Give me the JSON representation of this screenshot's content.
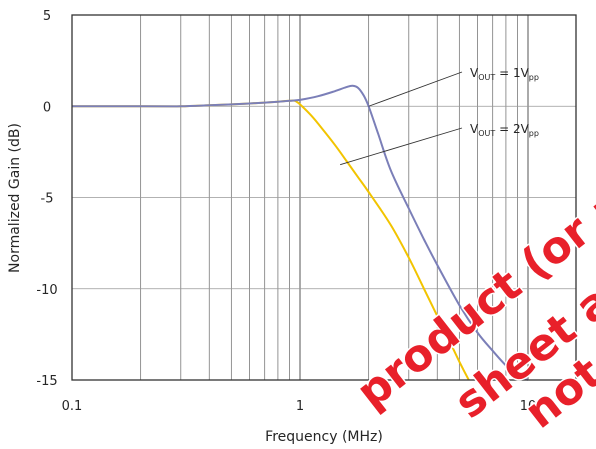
{
  "chart_data": {
    "type": "line",
    "xlabel": "Frequency (MHz)",
    "ylabel": "Normalized Gain (dB)",
    "xscale": "log",
    "xlim": [
      0.1,
      20
    ],
    "ylim": [
      -15,
      5
    ],
    "x_ticks": [
      "0.1",
      "1",
      "10"
    ],
    "y_ticks": [
      "5",
      "0",
      "-5",
      "-10",
      "-15"
    ],
    "grid": true,
    "series": [
      {
        "name": "VOUT = 1Vpp",
        "label_parts": {
          "v": "V",
          "sub1": "OUT",
          "mid": " = 1V",
          "sub2": "pp"
        },
        "color": "#7b7fb8",
        "points": [
          [
            0.1,
            0
          ],
          [
            0.2,
            0
          ],
          [
            0.3,
            0
          ],
          [
            0.4,
            0.05
          ],
          [
            0.5,
            0.1
          ],
          [
            0.6,
            0.15
          ],
          [
            0.7,
            0.2
          ],
          [
            0.8,
            0.25
          ],
          [
            0.9,
            0.3
          ],
          [
            1.0,
            0.35
          ],
          [
            1.2,
            0.55
          ],
          [
            1.4,
            0.8
          ],
          [
            1.6,
            1.05
          ],
          [
            1.7,
            1.12
          ],
          [
            1.8,
            1.0
          ],
          [
            1.9,
            0.6
          ],
          [
            2.0,
            0.0
          ],
          [
            2.2,
            -1.5
          ],
          [
            2.5,
            -3.5
          ],
          [
            3.0,
            -5.6
          ],
          [
            3.5,
            -7.3
          ],
          [
            4.0,
            -8.7
          ],
          [
            5.0,
            -10.9
          ],
          [
            6.0,
            -12.4
          ],
          [
            7.0,
            -13.4
          ],
          [
            8.0,
            -14.2
          ],
          [
            9.0,
            -14.7
          ],
          [
            10.0,
            -15.0
          ]
        ]
      },
      {
        "name": "VOUT = 2Vpp",
        "label_parts": {
          "v": "V",
          "sub1": "OUT",
          "mid": " = 2V",
          "sub2": "pp"
        },
        "color": "#f2c400",
        "points": [
          [
            0.1,
            0
          ],
          [
            0.2,
            0
          ],
          [
            0.3,
            0
          ],
          [
            0.4,
            0.05
          ],
          [
            0.5,
            0.1
          ],
          [
            0.6,
            0.15
          ],
          [
            0.7,
            0.2
          ],
          [
            0.8,
            0.25
          ],
          [
            0.9,
            0.3
          ],
          [
            0.95,
            0.3
          ],
          [
            1.0,
            0.1
          ],
          [
            1.1,
            -0.4
          ],
          [
            1.2,
            -0.95
          ],
          [
            1.4,
            -2.0
          ],
          [
            1.6,
            -3.0
          ],
          [
            1.8,
            -3.9
          ],
          [
            2.0,
            -4.7
          ],
          [
            2.5,
            -6.5
          ],
          [
            3.0,
            -8.3
          ],
          [
            3.5,
            -10.0
          ],
          [
            4.0,
            -11.5
          ],
          [
            4.5,
            -12.8
          ],
          [
            5.0,
            -14.0
          ],
          [
            5.5,
            -15.0
          ]
        ]
      }
    ]
  },
  "watermark": {
    "line1": "product (or produ",
    "line2": "sheet are no",
    "line3": "not be",
    "color": "#e8202a"
  }
}
